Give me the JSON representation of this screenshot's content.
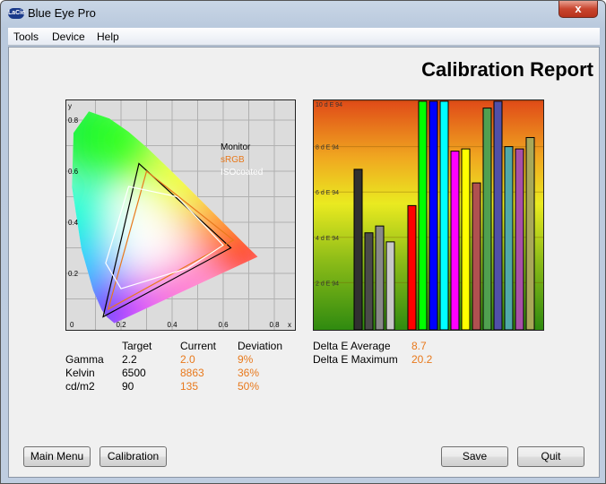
{
  "window": {
    "title": "Blue Eye Pro",
    "app_icon": "LaCie",
    "close_label": "x"
  },
  "menu": [
    "Tools",
    "Device",
    "Help"
  ],
  "report_title": "Calibration Report",
  "cie_chart": {
    "type": "scatter",
    "xlabel": "x",
    "ylabel": "y",
    "x_ticks": [
      "0",
      "0.2",
      "0.4",
      "0.6",
      "0.8"
    ],
    "y_ticks": [
      "0.2",
      "0.4",
      "0.6",
      "0.8"
    ],
    "xlim": [
      0,
      0.9
    ],
    "ylim": [
      0,
      0.9
    ],
    "grid": true,
    "legend_position": "top-right",
    "series": [
      {
        "name": "Monitor",
        "color": "#000000",
        "points": [
          [
            0.27,
            0.63
          ],
          [
            0.63,
            0.3
          ],
          [
            0.13,
            0.03
          ]
        ]
      },
      {
        "name": "sRGB",
        "color": "#e8791c",
        "points": [
          [
            0.3,
            0.6
          ],
          [
            0.64,
            0.33
          ],
          [
            0.15,
            0.06
          ]
        ]
      },
      {
        "name": "ISOcoated",
        "color": "#ffffff",
        "points": [
          [
            0.23,
            0.54
          ],
          [
            0.42,
            0.5
          ],
          [
            0.6,
            0.31
          ],
          [
            0.46,
            0.22
          ],
          [
            0.2,
            0.14
          ],
          [
            0.14,
            0.24
          ]
        ]
      }
    ]
  },
  "chart_data": {
    "type": "bar",
    "ylim": [
      0,
      10
    ],
    "y_ticks": [
      "2 d E 94",
      "4 d E 94",
      "6 d E 94",
      "8 d E 94",
      "10 d E 94"
    ],
    "values": [
      7.0,
      4.2,
      4.5,
      3.8,
      null,
      5.4,
      10,
      10,
      10,
      7.8,
      7.9,
      6.4,
      9.7,
      10,
      8.0,
      7.9,
      8.4
    ],
    "colors": [
      "#303030",
      "#4a4a4a",
      "#888888",
      "#c8c8c8",
      null,
      "#ff0000",
      "#00ff00",
      "#0000ff",
      "#00ffff",
      "#ff00ff",
      "#ffff00",
      "#b05050",
      "#50a050",
      "#5050a8",
      "#50a8a8",
      "#a850a8",
      "#a8a858"
    ]
  },
  "stats": {
    "headers": [
      "Target",
      "Current",
      "Deviation"
    ],
    "rows": [
      {
        "label": "Gamma",
        "target": "2.2",
        "current": "2.0",
        "deviation": "9%"
      },
      {
        "label": "Kelvin",
        "target": "6500",
        "current": "8863",
        "deviation": "36%"
      },
      {
        "label": "cd/m2",
        "target": "90",
        "current": "135",
        "deviation": "50%"
      }
    ]
  },
  "delta": {
    "avg_label": "Delta E Average",
    "avg": "8.7",
    "max_label": "Delta E Maximum",
    "max": "20.2"
  },
  "buttons": {
    "main_menu": "Main Menu",
    "calibration": "Calibration",
    "save": "Save",
    "quit": "Quit"
  }
}
